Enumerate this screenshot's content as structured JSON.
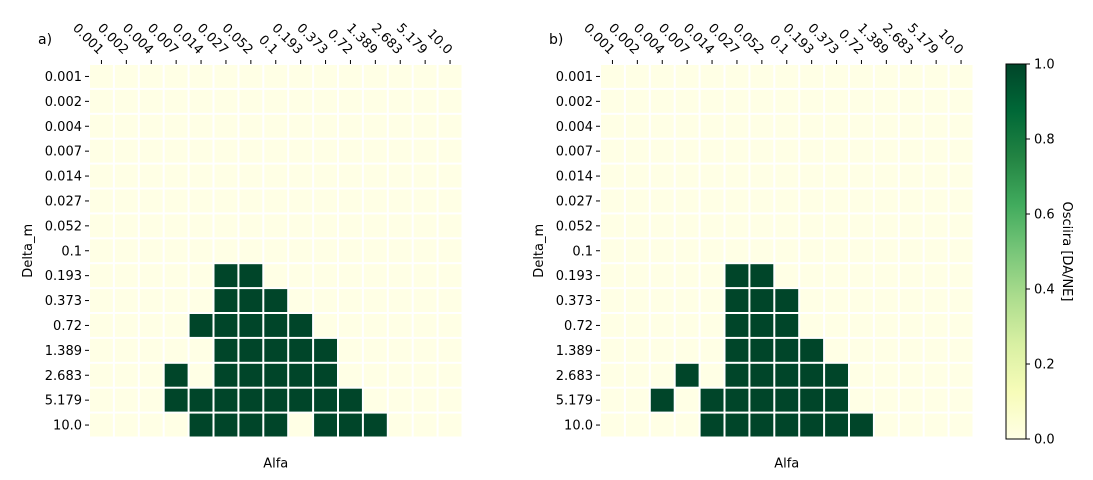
{
  "colors": {
    "low": "#ffffe5",
    "high": "#004529",
    "cell_gap": "#ffffff",
    "axis": "#000000"
  },
  "colorbar": {
    "label": "Osciira [DA/NE]",
    "ticks": [
      "0.0",
      "0.2",
      "0.4",
      "0.6",
      "0.8",
      "1.0"
    ],
    "range": [
      0.0,
      1.0
    ],
    "stops": [
      {
        "v": 0.0,
        "c": "#ffffe5"
      },
      {
        "v": 0.125,
        "c": "#f7fcb9"
      },
      {
        "v": 0.25,
        "c": "#d9f0a3"
      },
      {
        "v": 0.375,
        "c": "#addd8e"
      },
      {
        "v": 0.5,
        "c": "#78c679"
      },
      {
        "v": 0.625,
        "c": "#41ab5d"
      },
      {
        "v": 0.75,
        "c": "#238443"
      },
      {
        "v": 0.875,
        "c": "#006837"
      },
      {
        "v": 1.0,
        "c": "#004529"
      }
    ]
  },
  "chart_data": [
    {
      "type": "heatmap",
      "title": "a)",
      "xlabel": "Alfa",
      "ylabel": "Delta_m",
      "x_categories": [
        "0.001",
        "0.002",
        "0.004",
        "0.007",
        "0.014",
        "0.027",
        "0.052",
        "0.1",
        "0.193",
        "0.373",
        "0.72",
        "1.389",
        "2.683",
        "5.179",
        "10.0"
      ],
      "y_categories": [
        "0.001",
        "0.002",
        "0.004",
        "0.007",
        "0.014",
        "0.027",
        "0.052",
        "0.1",
        "0.193",
        "0.373",
        "0.72",
        "1.389",
        "2.683",
        "5.179",
        "10.0"
      ],
      "values": [
        [
          0,
          0,
          0,
          0,
          0,
          0,
          0,
          0,
          0,
          0,
          0,
          0,
          0,
          0,
          0
        ],
        [
          0,
          0,
          0,
          0,
          0,
          0,
          0,
          0,
          0,
          0,
          0,
          0,
          0,
          0,
          0
        ],
        [
          0,
          0,
          0,
          0,
          0,
          0,
          0,
          0,
          0,
          0,
          0,
          0,
          0,
          0,
          0
        ],
        [
          0,
          0,
          0,
          0,
          0,
          0,
          0,
          0,
          0,
          0,
          0,
          0,
          0,
          0,
          0
        ],
        [
          0,
          0,
          0,
          0,
          0,
          0,
          0,
          0,
          0,
          0,
          0,
          0,
          0,
          0,
          0
        ],
        [
          0,
          0,
          0,
          0,
          0,
          0,
          0,
          0,
          0,
          0,
          0,
          0,
          0,
          0,
          0
        ],
        [
          0,
          0,
          0,
          0,
          0,
          0,
          0,
          0,
          0,
          0,
          0,
          0,
          0,
          0,
          0
        ],
        [
          0,
          0,
          0,
          0,
          0,
          0,
          0,
          0,
          0,
          0,
          0,
          0,
          0,
          0,
          0
        ],
        [
          0,
          0,
          0,
          0,
          0,
          1,
          1,
          0,
          0,
          0,
          0,
          0,
          0,
          0,
          0
        ],
        [
          0,
          0,
          0,
          0,
          0,
          1,
          1,
          1,
          0,
          0,
          0,
          0,
          0,
          0,
          0
        ],
        [
          0,
          0,
          0,
          0,
          1,
          1,
          1,
          1,
          1,
          0,
          0,
          0,
          0,
          0,
          0
        ],
        [
          0,
          0,
          0,
          0,
          0,
          1,
          1,
          1,
          1,
          1,
          0,
          0,
          0,
          0,
          0
        ],
        [
          0,
          0,
          0,
          1,
          0,
          1,
          1,
          1,
          1,
          1,
          0,
          0,
          0,
          0,
          0
        ],
        [
          0,
          0,
          0,
          1,
          1,
          1,
          1,
          1,
          1,
          1,
          1,
          0,
          0,
          0,
          0
        ],
        [
          0,
          0,
          0,
          0,
          1,
          1,
          1,
          1,
          0,
          1,
          1,
          1,
          0,
          0,
          0
        ]
      ]
    },
    {
      "type": "heatmap",
      "title": "b)",
      "xlabel": "Alfa",
      "ylabel": "Delta_m",
      "x_categories": [
        "0.001",
        "0.002",
        "0.004",
        "0.007",
        "0.014",
        "0.027",
        "0.052",
        "0.1",
        "0.193",
        "0.373",
        "0.72",
        "1.389",
        "2.683",
        "5.179",
        "10.0"
      ],
      "y_categories": [
        "0.001",
        "0.002",
        "0.004",
        "0.007",
        "0.014",
        "0.027",
        "0.052",
        "0.1",
        "0.193",
        "0.373",
        "0.72",
        "1.389",
        "2.683",
        "5.179",
        "10.0"
      ],
      "values": [
        [
          0,
          0,
          0,
          0,
          0,
          0,
          0,
          0,
          0,
          0,
          0,
          0,
          0,
          0,
          0
        ],
        [
          0,
          0,
          0,
          0,
          0,
          0,
          0,
          0,
          0,
          0,
          0,
          0,
          0,
          0,
          0
        ],
        [
          0,
          0,
          0,
          0,
          0,
          0,
          0,
          0,
          0,
          0,
          0,
          0,
          0,
          0,
          0
        ],
        [
          0,
          0,
          0,
          0,
          0,
          0,
          0,
          0,
          0,
          0,
          0,
          0,
          0,
          0,
          0
        ],
        [
          0,
          0,
          0,
          0,
          0,
          0,
          0,
          0,
          0,
          0,
          0,
          0,
          0,
          0,
          0
        ],
        [
          0,
          0,
          0,
          0,
          0,
          0,
          0,
          0,
          0,
          0,
          0,
          0,
          0,
          0,
          0
        ],
        [
          0,
          0,
          0,
          0,
          0,
          0,
          0,
          0,
          0,
          0,
          0,
          0,
          0,
          0,
          0
        ],
        [
          0,
          0,
          0,
          0,
          0,
          0,
          0,
          0,
          0,
          0,
          0,
          0,
          0,
          0,
          0
        ],
        [
          0,
          0,
          0,
          0,
          0,
          1,
          1,
          0,
          0,
          0,
          0,
          0,
          0,
          0,
          0
        ],
        [
          0,
          0,
          0,
          0,
          0,
          1,
          1,
          1,
          0,
          0,
          0,
          0,
          0,
          0,
          0
        ],
        [
          0,
          0,
          0,
          0,
          0,
          1,
          1,
          1,
          0,
          0,
          0,
          0,
          0,
          0,
          0
        ],
        [
          0,
          0,
          0,
          0,
          0,
          1,
          1,
          1,
          1,
          0,
          0,
          0,
          0,
          0,
          0
        ],
        [
          0,
          0,
          0,
          1,
          0,
          1,
          1,
          1,
          1,
          1,
          0,
          0,
          0,
          0,
          0
        ],
        [
          0,
          0,
          1,
          0,
          1,
          1,
          1,
          1,
          1,
          1,
          0,
          0,
          0,
          0,
          0
        ],
        [
          0,
          0,
          0,
          0,
          1,
          1,
          1,
          1,
          1,
          1,
          1,
          0,
          0,
          0,
          0
        ]
      ]
    }
  ]
}
